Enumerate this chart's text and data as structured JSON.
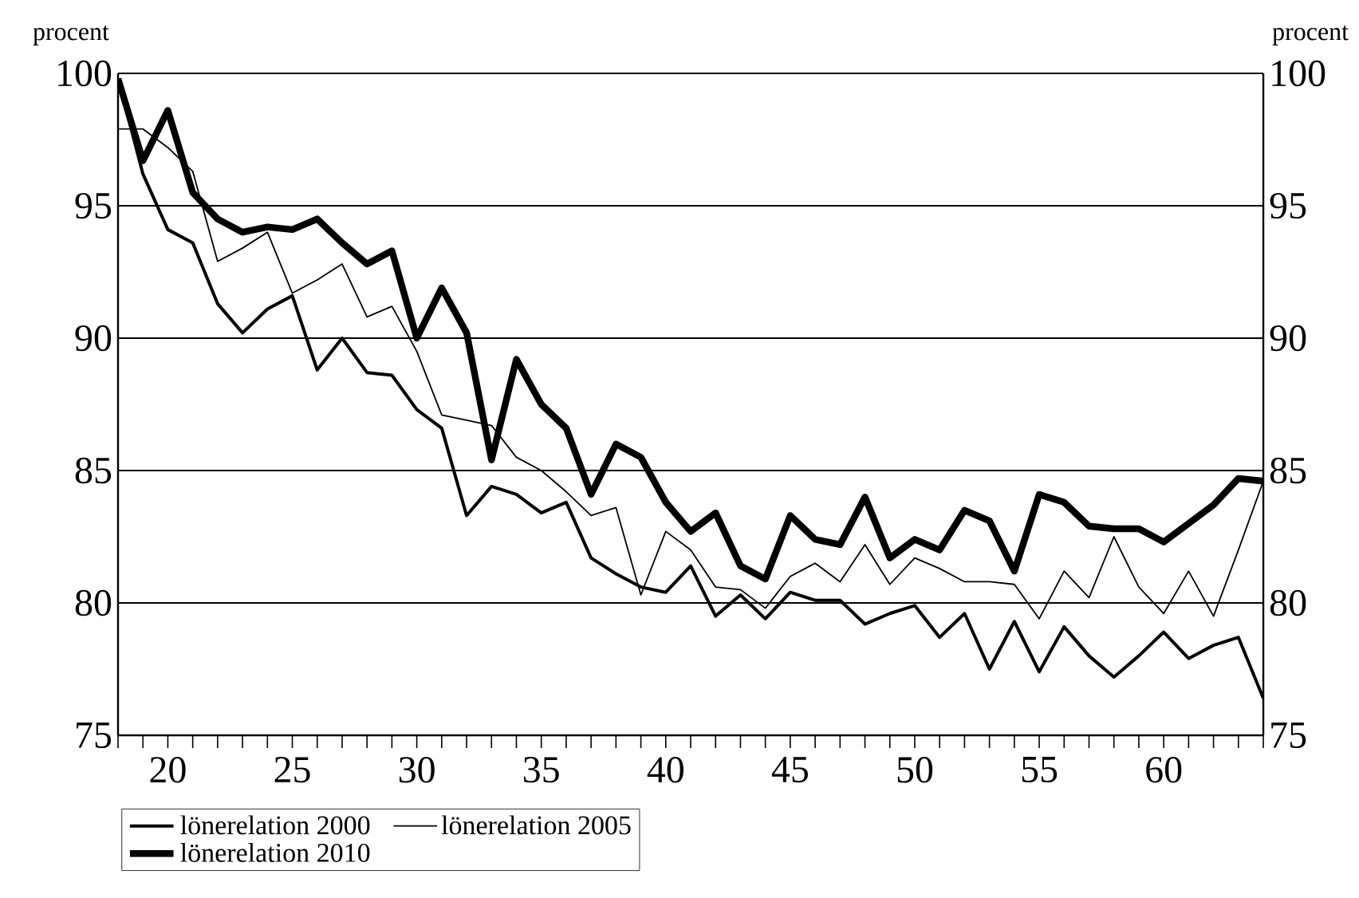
{
  "chart_data": {
    "type": "line",
    "ylabel": "procent",
    "y2label": "procent",
    "x": [
      18,
      19,
      20,
      21,
      22,
      23,
      24,
      25,
      26,
      27,
      28,
      29,
      30,
      31,
      32,
      33,
      34,
      35,
      36,
      37,
      38,
      39,
      40,
      41,
      42,
      43,
      44,
      45,
      46,
      47,
      48,
      49,
      50,
      51,
      52,
      53,
      54,
      55,
      56,
      57,
      58,
      59,
      60,
      61,
      62,
      63,
      64
    ],
    "series": [
      {
        "name": "lönerelation 2000",
        "color": "#000000",
        "values": [
          99.8,
          96.2,
          94.1,
          93.6,
          91.3,
          90.2,
          91.1,
          91.6,
          88.8,
          90.0,
          88.7,
          88.6,
          87.3,
          86.6,
          83.3,
          84.4,
          84.1,
          83.4,
          83.8,
          81.7,
          81.1,
          80.6,
          80.4,
          81.4,
          79.5,
          80.3,
          79.4,
          80.4,
          80.1,
          80.1,
          79.2,
          79.6,
          79.9,
          78.7,
          79.6,
          77.5,
          79.3,
          77.4,
          79.1,
          78.0,
          77.2,
          78.0,
          78.9,
          77.9,
          78.4,
          78.7,
          76.4
        ]
      },
      {
        "name": "lönerelation 2005",
        "color": "#000000",
        "values": [
          97.9,
          97.9,
          97.2,
          96.3,
          92.9,
          93.4,
          94.0,
          91.7,
          92.2,
          92.8,
          90.8,
          91.2,
          89.5,
          87.1,
          86.9,
          86.7,
          85.5,
          85.0,
          84.2,
          83.3,
          83.6,
          80.3,
          82.7,
          82.0,
          80.6,
          80.5,
          79.8,
          81.0,
          81.5,
          80.8,
          82.2,
          80.7,
          81.7,
          81.3,
          80.8,
          80.8,
          80.7,
          79.4,
          81.2,
          80.2,
          82.5,
          80.6,
          79.6,
          81.2,
          79.5,
          82.0,
          84.6
        ]
      },
      {
        "name": "lönerelation 2010",
        "color": "#000000",
        "values": [
          99.8,
          96.7,
          98.6,
          95.5,
          94.5,
          94.0,
          94.2,
          94.1,
          94.5,
          93.6,
          92.8,
          93.3,
          90.0,
          91.9,
          90.2,
          85.4,
          89.2,
          87.5,
          86.6,
          84.1,
          86.0,
          85.5,
          83.8,
          82.7,
          83.4,
          81.4,
          80.9,
          83.3,
          82.4,
          82.2,
          84.0,
          81.7,
          82.4,
          82.0,
          83.5,
          83.1,
          81.2,
          84.1,
          83.8,
          82.9,
          82.8,
          82.8,
          82.3,
          83.0,
          83.7,
          84.7,
          84.6
        ]
      }
    ],
    "xlim": [
      18,
      64
    ],
    "xticks": [
      {
        "value": 18,
        "label": null
      },
      {
        "value": 19,
        "label": null
      },
      20,
      {
        "value": 21,
        "label": null
      },
      {
        "value": 22,
        "label": null
      },
      {
        "value": 23,
        "label": null
      },
      {
        "value": 24,
        "label": null
      },
      25,
      {
        "value": 26,
        "label": null
      },
      {
        "value": 27,
        "label": null
      },
      {
        "value": 28,
        "label": null
      },
      {
        "value": 29,
        "label": null
      },
      30,
      {
        "value": 31,
        "label": null
      },
      {
        "value": 32,
        "label": null
      },
      {
        "value": 33,
        "label": null
      },
      {
        "value": 34,
        "label": null
      },
      35,
      {
        "value": 36,
        "label": null
      },
      {
        "value": 37,
        "label": null
      },
      {
        "value": 38,
        "label": null
      },
      {
        "value": 39,
        "label": null
      },
      40,
      {
        "value": 41,
        "label": null
      },
      {
        "value": 42,
        "label": null
      },
      {
        "value": 43,
        "label": null
      },
      {
        "value": 44,
        "label": null
      },
      45,
      {
        "value": 46,
        "label": null
      },
      {
        "value": 47,
        "label": null
      },
      {
        "value": 48,
        "label": null
      },
      {
        "value": 49,
        "label": null
      },
      50,
      {
        "value": 51,
        "label": null
      },
      {
        "value": 52,
        "label": null
      },
      {
        "value": 53,
        "label": null
      },
      {
        "value": 54,
        "label": null
      },
      55,
      {
        "value": 56,
        "label": null
      },
      {
        "value": 57,
        "label": null
      },
      {
        "value": 58,
        "label": null
      },
      {
        "value": 59,
        "label": null
      },
      60,
      {
        "value": 61,
        "label": null
      },
      {
        "value": 62,
        "label": null
      },
      {
        "value": 63,
        "label": null
      },
      {
        "value": 64,
        "label": null
      }
    ],
    "ylim": [
      75,
      100
    ],
    "yticks": [
      75,
      80,
      85,
      90,
      95,
      100
    ],
    "y2lim": [
      75,
      100
    ],
    "y2ticks": [
      75,
      80,
      85,
      90,
      95,
      100
    ],
    "grid": "y",
    "legend": "bottom left"
  }
}
